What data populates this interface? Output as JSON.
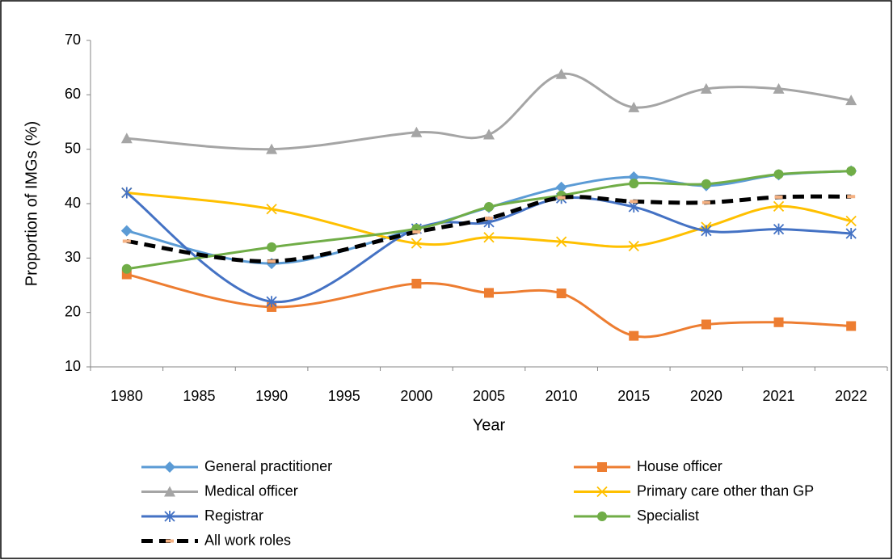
{
  "chart_data": {
    "type": "line",
    "x_label": "Year",
    "y_label": "Proportion of IMGs (%)",
    "categories": [
      "1980",
      "1985",
      "1990",
      "1995",
      "2000",
      "2005",
      "2010",
      "2015",
      "2020",
      "2021",
      "2022"
    ],
    "ylim": [
      10,
      70
    ],
    "yticks": [
      10,
      20,
      30,
      40,
      50,
      60,
      70
    ],
    "grid": false,
    "smooth": true,
    "connect_gaps": true,
    "legend": "bottom",
    "series": [
      {
        "name": "General practitioner",
        "color": "#5b9bd5",
        "marker": "diamond",
        "values": [
          35,
          null,
          29,
          null,
          35.4,
          39.3,
          43,
          44.9,
          43.3,
          45.3,
          46
        ]
      },
      {
        "name": "House officer",
        "color": "#ed7d31",
        "marker": "square",
        "values": [
          27,
          null,
          21,
          null,
          25.3,
          23.6,
          23.5,
          15.7,
          17.8,
          18.2,
          17.5
        ]
      },
      {
        "name": "Medical officer",
        "color": "#a5a5a5",
        "marker": "triangle",
        "values": [
          52,
          null,
          50,
          null,
          53.1,
          52.7,
          63.8,
          57.7,
          61.1,
          61.1,
          59
        ]
      },
      {
        "name": "Primary care other than GP",
        "color": "#ffc000",
        "marker": "x",
        "values": [
          42,
          null,
          39,
          null,
          32.7,
          33.8,
          33,
          32.2,
          35.7,
          39.5,
          36.8
        ]
      },
      {
        "name": "Registrar",
        "color": "#4472c4",
        "marker": "star",
        "values": [
          42,
          null,
          22,
          null,
          35.4,
          36.6,
          41,
          39.4,
          35,
          35.3,
          34.5
        ]
      },
      {
        "name": "Specialist",
        "color": "#70ad47",
        "marker": "circle",
        "values": [
          28,
          null,
          32,
          null,
          35.4,
          39.4,
          41.5,
          43.7,
          43.6,
          45.4,
          46
        ]
      },
      {
        "name": "All work roles",
        "color": "#000000",
        "marker": "dash",
        "marker_color": "#f4b183",
        "dashed": true,
        "values": [
          33.1,
          null,
          29.4,
          null,
          34.8,
          37.3,
          41.1,
          40.4,
          40.2,
          41.2,
          41.3
        ]
      }
    ]
  }
}
